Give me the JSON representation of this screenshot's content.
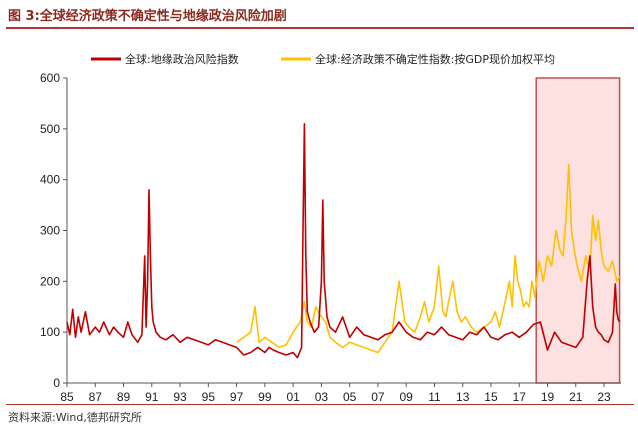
{
  "header": {
    "title": "图 3:全球经济政策不确定性与地缘政治风险加剧"
  },
  "footer": {
    "source": "资料来源:Wind,德邦研究所"
  },
  "chart_data": {
    "type": "line",
    "title": "",
    "xlabel": "",
    "ylabel": "",
    "xlim": [
      1985,
      2024.2
    ],
    "ylim": [
      0,
      600
    ],
    "y_ticks": [
      0,
      100,
      200,
      300,
      400,
      500,
      600
    ],
    "x_ticks": [
      1985,
      1987,
      1989,
      1991,
      1993,
      1995,
      1997,
      1999,
      2001,
      2003,
      2005,
      2007,
      2009,
      2011,
      2013,
      2015,
      2017,
      2019,
      2021,
      2023
    ],
    "x_tick_labels": [
      "85",
      "87",
      "89",
      "91",
      "93",
      "95",
      "97",
      "99",
      "01",
      "03",
      "05",
      "07",
      "09",
      "11",
      "13",
      "15",
      "17",
      "19",
      "21",
      "23"
    ],
    "grid": false,
    "legend_position": "top",
    "highlight_region": {
      "x": [
        2018.2,
        2024.1
      ],
      "color": "#fde0e0",
      "border": "#c0504d"
    },
    "series": [
      {
        "name": "全球:地缘政治风险指数",
        "color": "#c00000",
        "x": [
          1985.0,
          1985.2,
          1985.4,
          1985.6,
          1985.8,
          1986.0,
          1986.3,
          1986.6,
          1987.0,
          1987.3,
          1987.6,
          1988.0,
          1988.3,
          1988.6,
          1989.0,
          1989.3,
          1989.6,
          1990.0,
          1990.3,
          1990.5,
          1990.6,
          1990.7,
          1990.8,
          1990.9,
          1991.0,
          1991.1,
          1991.3,
          1991.6,
          1992.0,
          1992.5,
          1993.0,
          1993.5,
          1994.0,
          1994.5,
          1995.0,
          1995.5,
          1996.0,
          1996.5,
          1997.0,
          1997.5,
          1998.0,
          1998.5,
          1999.0,
          1999.3,
          1999.6,
          2000.0,
          2000.5,
          2001.0,
          2001.3,
          2001.6,
          2001.7,
          2001.8,
          2001.9,
          2002.0,
          2002.2,
          2002.5,
          2002.8,
          2003.0,
          2003.1,
          2003.2,
          2003.4,
          2003.6,
          2004.0,
          2004.5,
          2005.0,
          2005.5,
          2006.0,
          2006.5,
          2007.0,
          2007.5,
          2008.0,
          2008.5,
          2009.0,
          2009.5,
          2010.0,
          2010.5,
          2011.0,
          2011.5,
          2012.0,
          2012.5,
          2013.0,
          2013.5,
          2014.0,
          2014.5,
          2015.0,
          2015.5,
          2016.0,
          2016.5,
          2017.0,
          2017.5,
          2018.0,
          2018.5,
          2019.0,
          2019.5,
          2020.0,
          2020.5,
          2021.0,
          2021.5,
          2021.8,
          2022.0,
          2022.1,
          2022.2,
          2022.4,
          2022.6,
          2022.8,
          2023.0,
          2023.3,
          2023.6,
          2023.8,
          2023.9,
          2024.0,
          2024.1
        ],
        "y": [
          120,
          95,
          145,
          90,
          130,
          100,
          140,
          95,
          110,
          100,
          120,
          95,
          110,
          100,
          90,
          120,
          95,
          80,
          95,
          250,
          110,
          200,
          380,
          250,
          150,
          120,
          100,
          90,
          85,
          95,
          80,
          90,
          85,
          80,
          75,
          85,
          80,
          75,
          70,
          55,
          60,
          70,
          60,
          70,
          65,
          60,
          55,
          60,
          50,
          70,
          300,
          510,
          250,
          140,
          120,
          100,
          110,
          200,
          360,
          200,
          130,
          110,
          100,
          130,
          90,
          110,
          95,
          90,
          85,
          95,
          100,
          120,
          100,
          90,
          85,
          100,
          95,
          110,
          95,
          90,
          85,
          100,
          95,
          110,
          90,
          85,
          95,
          100,
          90,
          100,
          115,
          120,
          65,
          100,
          80,
          75,
          70,
          90,
          200,
          250,
          200,
          150,
          110,
          100,
          95,
          85,
          80,
          100,
          195,
          140,
          125,
          120
        ]
      },
      {
        "name": "全球:经济政策不确定性指数:按GDP现价加权平均",
        "color": "#ffc000",
        "x": [
          1997.0,
          1997.5,
          1998.0,
          1998.3,
          1998.6,
          1999.0,
          1999.5,
          2000.0,
          2000.5,
          2001.0,
          2001.5,
          2001.8,
          2002.0,
          2002.3,
          2002.6,
          2003.0,
          2003.3,
          2003.6,
          2004.0,
          2004.5,
          2005.0,
          2005.5,
          2006.0,
          2006.5,
          2007.0,
          2007.5,
          2008.0,
          2008.5,
          2008.9,
          2009.2,
          2009.6,
          2010.0,
          2010.3,
          2010.6,
          2011.0,
          2011.3,
          2011.6,
          2011.8,
          2012.0,
          2012.3,
          2012.6,
          2012.9,
          2013.2,
          2013.6,
          2014.0,
          2014.5,
          2015.0,
          2015.3,
          2015.6,
          2016.0,
          2016.3,
          2016.5,
          2016.7,
          2016.9,
          2017.1,
          2017.3,
          2017.5,
          2017.7,
          2017.9,
          2018.1,
          2018.4,
          2018.7,
          2019.0,
          2019.3,
          2019.6,
          2019.9,
          2020.1,
          2020.3,
          2020.5,
          2020.7,
          2020.9,
          2021.1,
          2021.4,
          2021.7,
          2022.0,
          2022.2,
          2022.4,
          2022.6,
          2022.8,
          2023.0,
          2023.3,
          2023.6,
          2023.9,
          2024.1
        ],
        "y": [
          80,
          90,
          100,
          150,
          80,
          90,
          80,
          70,
          75,
          100,
          120,
          160,
          120,
          110,
          150,
          130,
          120,
          90,
          80,
          70,
          80,
          75,
          70,
          65,
          60,
          80,
          100,
          200,
          120,
          110,
          100,
          130,
          160,
          120,
          150,
          230,
          140,
          130,
          160,
          200,
          140,
          120,
          130,
          110,
          100,
          110,
          120,
          140,
          110,
          160,
          200,
          150,
          250,
          200,
          180,
          150,
          160,
          150,
          200,
          170,
          240,
          200,
          250,
          230,
          300,
          260,
          250,
          320,
          430,
          300,
          260,
          230,
          200,
          250,
          220,
          330,
          280,
          320,
          260,
          230,
          220,
          240,
          200,
          210
        ]
      }
    ]
  }
}
